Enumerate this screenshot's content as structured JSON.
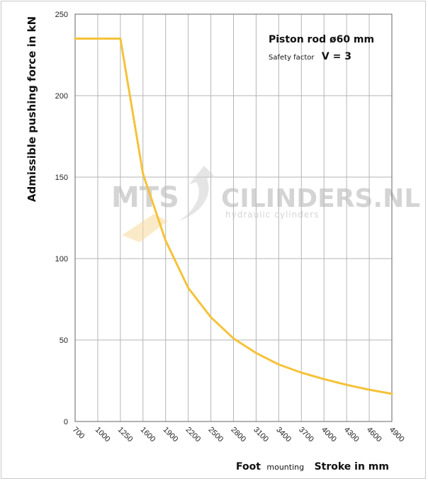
{
  "chart_data": {
    "type": "line",
    "x": [
      700,
      1000,
      1250,
      1600,
      1900,
      2200,
      2500,
      2800,
      3100,
      3400,
      3700,
      4000,
      4300,
      4600,
      4900
    ],
    "series": [
      {
        "values": [
          235,
          235,
          235,
          152,
          111,
          82,
          64,
          51,
          42,
          35,
          30,
          26,
          22.5,
          19.5,
          17
        ],
        "color": "#f5c23a"
      }
    ],
    "ylabel": "Admissible pushing force in kN",
    "xlabel_prefix": "Foot",
    "xlabel_small": "mounting",
    "xlabel_main": "Stroke in mm",
    "ylim": [
      0,
      250
    ],
    "yticks": [
      0,
      50,
      100,
      150,
      200,
      250
    ],
    "grid": true,
    "annotation_line1": "Piston rod ø60 mm",
    "annotation_line2_small": "Safety factor",
    "annotation_line2_big": "V = 3",
    "watermark_brand": "MTS",
    "watermark_name": "CILINDERS.NL",
    "watermark_sub": "hydraulic cylinders"
  }
}
